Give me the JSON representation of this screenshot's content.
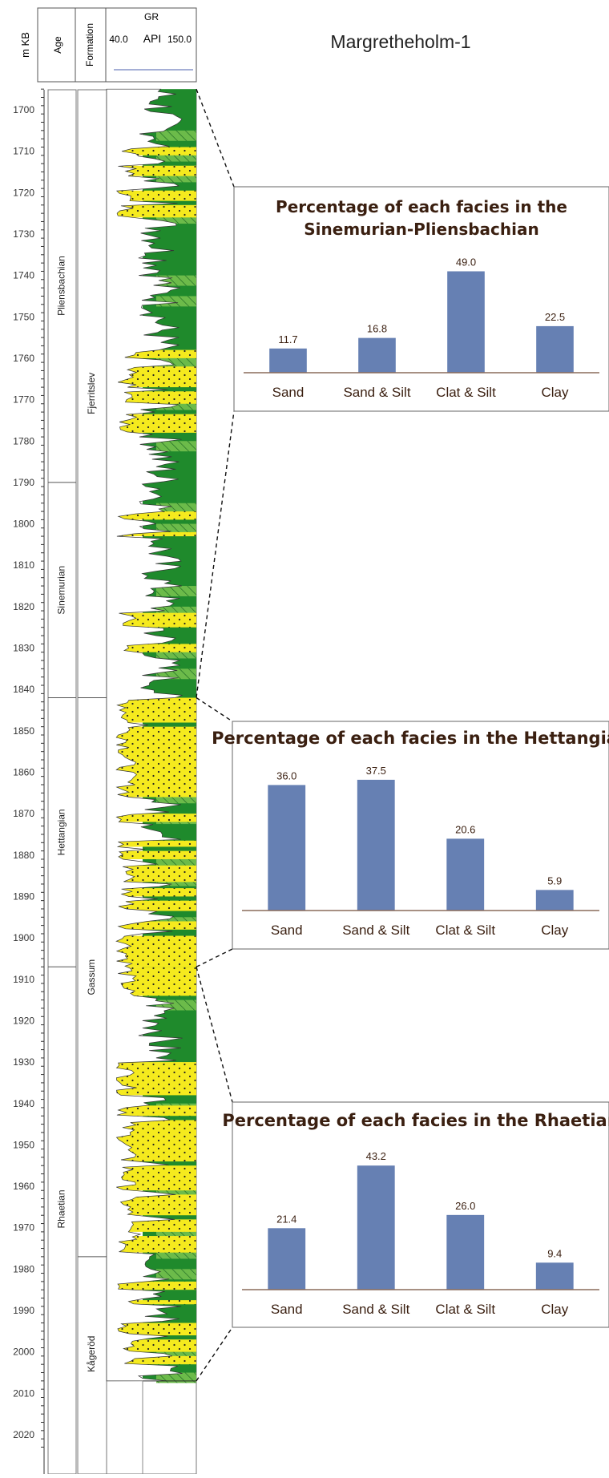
{
  "well": {
    "title": "Margretheholm-1",
    "depth_header": "m KB",
    "age_header": "Age",
    "formation_header": "Formation",
    "gr_header": "GR",
    "gr_min_label": "40.0",
    "gr_unit": "API",
    "gr_max_label": "150.0",
    "depth_top": 1695,
    "depth_bottom": 2024,
    "depth_ticks": [
      1700,
      1710,
      1720,
      1730,
      1740,
      1750,
      1760,
      1770,
      1780,
      1790,
      1800,
      1810,
      1820,
      1830,
      1840,
      1850,
      1860,
      1870,
      1880,
      1890,
      1900,
      1910,
      1920,
      1930,
      1940,
      1950,
      1960,
      1970,
      1980,
      1990,
      2000,
      2010,
      2020
    ],
    "depth_tick_labels": [
      "1700",
      "1710",
      "1720",
      "1730",
      "1740",
      "1750",
      "1760",
      "1770",
      "1780",
      "1790",
      "1800",
      "1810",
      "1820",
      "1830",
      "1840",
      "1850",
      "1860",
      "1870",
      "1880",
      "1890",
      "1900",
      "1910",
      "1920",
      "1930",
      "1940",
      "1950",
      "1960",
      "1970",
      "1980",
      "1990",
      "2000",
      "2010",
      "2020"
    ],
    "log_bottom_depth": 2007,
    "ages": [
      {
        "name": "Pliensbachian",
        "top": 1695,
        "base": 1790
      },
      {
        "name": "Sinemurian",
        "top": 1790,
        "base": 1842
      },
      {
        "name": "Hettangian",
        "top": 1842,
        "base": 1907
      },
      {
        "name": "Rhaetian",
        "top": 1907,
        "base": 2024
      }
    ],
    "formations": [
      {
        "name": "Fjerritslev",
        "top": 1695,
        "base": 1842
      },
      {
        "name": "Gassum",
        "top": 1842,
        "base": 1977
      },
      {
        "name": "Kågeröd",
        "top": 1977,
        "base": 2024
      }
    ],
    "sand_beds": [
      [
        1709,
        1711
      ],
      [
        1713.5,
        1716
      ],
      [
        1719.5,
        1722
      ],
      [
        1723,
        1726
      ],
      [
        1758,
        1760
      ],
      [
        1762,
        1767
      ],
      [
        1768,
        1771
      ],
      [
        1773.5,
        1778
      ],
      [
        1797,
        1799
      ],
      [
        1802,
        1803
      ],
      [
        1821.5,
        1825
      ],
      [
        1829,
        1831
      ],
      [
        1842,
        1848
      ],
      [
        1849,
        1866
      ],
      [
        1870,
        1872
      ],
      [
        1876.5,
        1878
      ],
      [
        1879,
        1881
      ],
      [
        1882.5,
        1886.5
      ],
      [
        1888,
        1890
      ],
      [
        1891,
        1893.5
      ],
      [
        1896,
        1898
      ],
      [
        1899.5,
        1907
      ],
      [
        1907,
        1914
      ],
      [
        1930,
        1938
      ],
      [
        1940.5,
        1943
      ],
      [
        1944,
        1954
      ],
      [
        1955,
        1961
      ],
      [
        1962,
        1967
      ],
      [
        1968,
        1971
      ],
      [
        1972,
        1976
      ],
      [
        1983,
        1985
      ],
      [
        1987.5,
        1988.5
      ],
      [
        1993,
        1996
      ],
      [
        1997,
        2000
      ],
      [
        2001,
        2003
      ]
    ],
    "colors": {
      "sand": "#f5ea1e",
      "shale_dark": "#1f8a2c",
      "shale_light": "#6cbb4a",
      "gr_curve": "#6f7fbd",
      "connector": "#111111"
    }
  },
  "chart_data": [
    {
      "type": "bar",
      "title": "Percentage of each facies in the Sinemurian-Pliensbachian",
      "title_lines": [
        "Percentage of each facies in the",
        "Sinemurian-Pliensbachian"
      ],
      "categories": [
        "Sand",
        "Sand & Silt",
        "Clat & Silt",
        "Clay"
      ],
      "values": [
        11.7,
        16.8,
        49.0,
        22.5
      ],
      "value_labels": [
        "11.7",
        "16.8",
        "49.0",
        "22.5"
      ],
      "ylim": [
        0,
        55
      ],
      "bar_color": "#6680b3"
    },
    {
      "type": "bar",
      "title": "Percentage of each facies in the Hettangian",
      "title_lines": [
        "Percentage of each facies in the Hettangian"
      ],
      "categories": [
        "Sand",
        "Sand & Silt",
        "Clat & Silt",
        "Clay"
      ],
      "values": [
        36.0,
        37.5,
        20.6,
        5.9
      ],
      "value_labels": [
        "36.0",
        "37.5",
        "20.6",
        "5.9"
      ],
      "ylim": [
        0,
        40
      ],
      "bar_color": "#6680b3"
    },
    {
      "type": "bar",
      "title": "Percentage of each facies in the Rhaetian",
      "title_lines": [
        "Percentage of each facies in the Rhaetian"
      ],
      "categories": [
        "Sand",
        "Sand & Silt",
        "Clat & Silt",
        "Clay"
      ],
      "values": [
        21.4,
        43.2,
        26.0,
        9.4
      ],
      "value_labels": [
        "21.4",
        "43.2",
        "26.0",
        "9.4"
      ],
      "ylim": [
        0,
        48
      ],
      "bar_color": "#6680b3"
    }
  ]
}
